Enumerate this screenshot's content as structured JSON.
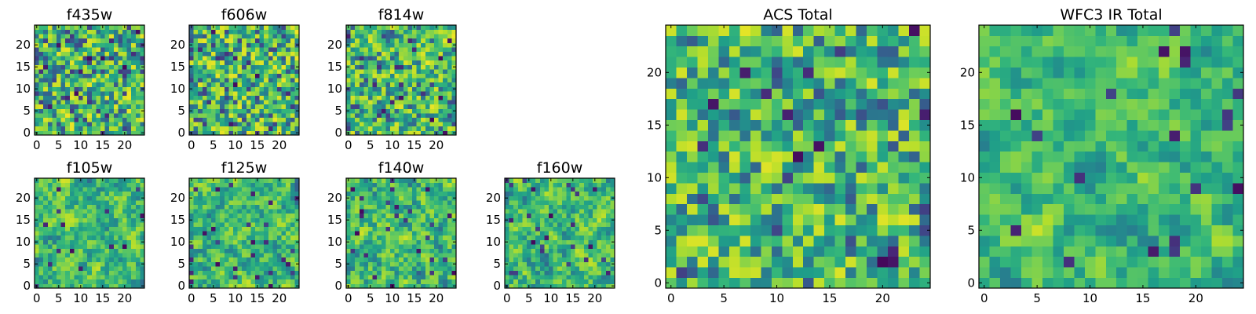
{
  "chart_data": [
    {
      "type": "heatmap",
      "title": "f435w",
      "seed": 11,
      "roughness": 0.9,
      "xticks": [
        "0",
        "5",
        "10",
        "15",
        "20"
      ],
      "yticks": [
        "0",
        "5",
        "10",
        "15",
        "20"
      ],
      "xlim": [
        -0.5,
        24.5
      ],
      "ylim": [
        -0.5,
        24.5
      ],
      "grid_size": [
        25,
        25
      ],
      "colormap": "viridis"
    },
    {
      "type": "heatmap",
      "title": "f606w",
      "seed": 23,
      "roughness": 0.9,
      "xticks": [
        "0",
        "5",
        "10",
        "15",
        "20"
      ],
      "yticks": [
        "0",
        "5",
        "10",
        "15",
        "20"
      ],
      "xlim": [
        -0.5,
        24.5
      ],
      "ylim": [
        -0.5,
        24.5
      ],
      "grid_size": [
        25,
        25
      ],
      "colormap": "viridis"
    },
    {
      "type": "heatmap",
      "title": "f814w",
      "seed": 37,
      "roughness": 0.8,
      "xticks": [
        "0",
        "5",
        "10",
        "15",
        "20"
      ],
      "yticks": [
        "0",
        "5",
        "10",
        "15",
        "20"
      ],
      "xlim": [
        -0.5,
        24.5
      ],
      "ylim": [
        -0.5,
        24.5
      ],
      "grid_size": [
        25,
        25
      ],
      "colormap": "viridis"
    },
    {
      "type": "heatmap",
      "title": "f105w",
      "seed": 41,
      "roughness": 0.45,
      "xticks": [
        "0",
        "5",
        "10",
        "15",
        "20"
      ],
      "yticks": [
        "0",
        "5",
        "10",
        "15",
        "20"
      ],
      "xlim": [
        -0.5,
        24.5
      ],
      "ylim": [
        -0.5,
        24.5
      ],
      "grid_size": [
        25,
        25
      ],
      "colormap": "viridis"
    },
    {
      "type": "heatmap",
      "title": "f125w",
      "seed": 53,
      "roughness": 0.45,
      "xticks": [
        "0",
        "5",
        "10",
        "15",
        "20"
      ],
      "yticks": [
        "0",
        "5",
        "10",
        "15",
        "20"
      ],
      "xlim": [
        -0.5,
        24.5
      ],
      "ylim": [
        -0.5,
        24.5
      ],
      "grid_size": [
        25,
        25
      ],
      "colormap": "viridis"
    },
    {
      "type": "heatmap",
      "title": "f140w",
      "seed": 67,
      "roughness": 0.5,
      "xticks": [
        "0",
        "5",
        "10",
        "15",
        "20"
      ],
      "yticks": [
        "0",
        "5",
        "10",
        "15",
        "20"
      ],
      "xlim": [
        -0.5,
        24.5
      ],
      "ylim": [
        -0.5,
        24.5
      ],
      "grid_size": [
        25,
        25
      ],
      "colormap": "viridis"
    },
    {
      "type": "heatmap",
      "title": "f160w",
      "seed": 79,
      "roughness": 0.45,
      "xticks": [
        "0",
        "5",
        "10",
        "15",
        "20"
      ],
      "yticks": [
        "0",
        "5",
        "10",
        "15",
        "20"
      ],
      "xlim": [
        -0.5,
        24.5
      ],
      "ylim": [
        -0.5,
        24.5
      ],
      "grid_size": [
        25,
        25
      ],
      "colormap": "viridis"
    },
    {
      "type": "heatmap",
      "title": "ACS Total",
      "seed": 97,
      "roughness": 0.8,
      "xticks": [
        "0",
        "5",
        "10",
        "15",
        "20"
      ],
      "yticks": [
        "0",
        "5",
        "10",
        "15",
        "20"
      ],
      "xlim": [
        -0.5,
        24.5
      ],
      "ylim": [
        -0.5,
        24.5
      ],
      "grid_size": [
        25,
        25
      ],
      "colormap": "viridis"
    },
    {
      "type": "heatmap",
      "title": "WFC3 IR Total",
      "seed": 131,
      "roughness": 0.35,
      "xticks": [
        "0",
        "5",
        "10",
        "15",
        "20"
      ],
      "yticks": [
        "0",
        "5",
        "10",
        "15",
        "20"
      ],
      "xlim": [
        -0.5,
        24.5
      ],
      "ylim": [
        -0.5,
        24.5
      ],
      "grid_size": [
        25,
        25
      ],
      "colormap": "viridis"
    }
  ]
}
